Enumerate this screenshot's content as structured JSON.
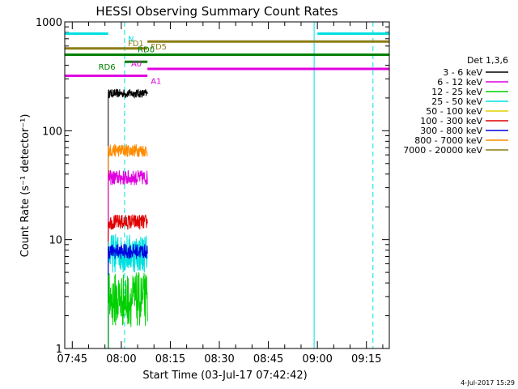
{
  "chart_data": {
    "type": "line",
    "title": "HESSI Observing Summary Count Rates",
    "xlabel": "Start Time (03-Jul-17 07:42:42)",
    "ylabel": "Count Rate (s⁻¹ detector⁻¹)",
    "x_scale": "time",
    "y_scale": "log",
    "xlim": [
      "07:42:42",
      "09:22:00"
    ],
    "ylim": [
      1,
      1000
    ],
    "x_ticks": [
      "07:45",
      "08:00",
      "08:15",
      "08:30",
      "08:45",
      "09:00",
      "09:15"
    ],
    "y_ticks": [
      "1",
      "10",
      "100",
      "1000"
    ],
    "footer": "4-Jul-2017 15:29",
    "legend": {
      "title": "Det 1,3,6",
      "placement": "right",
      "entries": [
        {
          "label": "3 - 6 keV",
          "color": "#000000"
        },
        {
          "label": "6 - 12 keV",
          "color": "#e000e0"
        },
        {
          "label": "12 - 25 keV",
          "color": "#00d000"
        },
        {
          "label": "25 - 50 keV",
          "color": "#00e0e0"
        },
        {
          "label": "50 - 100 keV",
          "color": "#e0d000"
        },
        {
          "label": "100 - 300 keV",
          "color": "#e00000"
        },
        {
          "label": "300 - 800 keV",
          "color": "#0000e0"
        },
        {
          "label": "800 - 7000 keV",
          "color": "#ff8c00"
        },
        {
          "label": "7000 - 20000 keV",
          "color": "#8b7d14"
        }
      ]
    },
    "series": [
      {
        "name": "3 - 6 keV",
        "color": "#000000",
        "x_range": [
          "07:56:00",
          "08:08:00"
        ],
        "level": 220,
        "spread": 0.04
      },
      {
        "name": "800 - 7000 keV",
        "color": "#ff8c00",
        "x_range": [
          "07:56:00",
          "08:08:00"
        ],
        "level": 66,
        "spread": 0.06
      },
      {
        "name": "6 - 12 keV",
        "color": "#e000e0",
        "x_range": [
          "07:56:00",
          "08:08:00"
        ],
        "level": 37,
        "spread": 0.07
      },
      {
        "name": "100 - 300 keV",
        "color": "#e00000",
        "x_range": [
          "07:56:00",
          "08:08:00"
        ],
        "level": 14.5,
        "spread": 0.07
      },
      {
        "name": "25 - 50 keV",
        "color": "#00e0e0",
        "x_range": [
          "07:56:00",
          "08:08:00"
        ],
        "level": 7.5,
        "spread": 0.18
      },
      {
        "name": "300 - 800 keV",
        "color": "#0000e0",
        "x_range": [
          "07:56:00",
          "08:08:00"
        ],
        "level": 7.8,
        "spread": 0.07
      },
      {
        "name": "12 - 25 keV",
        "color": "#00d000",
        "x_range": [
          "07:56:00",
          "08:08:00"
        ],
        "level": 2.8,
        "spread": 0.25
      }
    ],
    "bars": [
      {
        "label": "N",
        "color": "#00e0e0",
        "segments": [
          [
            "07:42:42",
            "07:56:00"
          ],
          [
            "09:00:00",
            "09:22:00"
          ]
        ],
        "level": 780,
        "label_at": "08:02:00",
        "label_side": "below"
      },
      {
        "label": "FD1",
        "color": "#8b7d14",
        "segments": [
          [
            "07:42:42",
            "08:08:00"
          ]
        ],
        "level": 570,
        "label_at": "08:02:00",
        "label_side": "above"
      },
      {
        "label": "FD5",
        "color": "#8b7d14",
        "segments": [
          [
            "08:08:00",
            "09:22:00"
          ]
        ],
        "level": 660,
        "label_at": "08:09:00",
        "label_side": "below"
      },
      {
        "label": "RD0",
        "color": "#008000",
        "segments": [
          [
            "07:42:42",
            "09:22:00"
          ]
        ],
        "level": 500,
        "label_at": "08:05:00",
        "label_side": "above"
      },
      {
        "label": "RD6",
        "color": "#008000",
        "segments": [
          [
            "08:01:00",
            "08:08:00"
          ]
        ],
        "level": 430,
        "label_at": "07:53:00",
        "label_side": "below"
      },
      {
        "label": "A0",
        "color": "#e000e0",
        "segments": [
          [
            "08:08:00",
            "09:22:00"
          ]
        ],
        "level": 370,
        "label_at": "08:03:00",
        "label_side": "above"
      },
      {
        "label": "A1",
        "color": "#e000e0",
        "segments": [
          [
            "07:42:42",
            "08:08:00"
          ]
        ],
        "level": 320,
        "label_at": "08:09:00",
        "label_side": "below"
      }
    ],
    "vlines": [
      {
        "x": "07:42:42",
        "color": "#00e0e0",
        "style": "solid"
      },
      {
        "x": "08:01:00",
        "color": "#00e0e0",
        "style": "dashed"
      },
      {
        "x": "08:59:00",
        "color": "#00e0e0",
        "style": "solid"
      },
      {
        "x": "09:17:00",
        "color": "#00e0e0",
        "style": "dashed"
      }
    ]
  }
}
